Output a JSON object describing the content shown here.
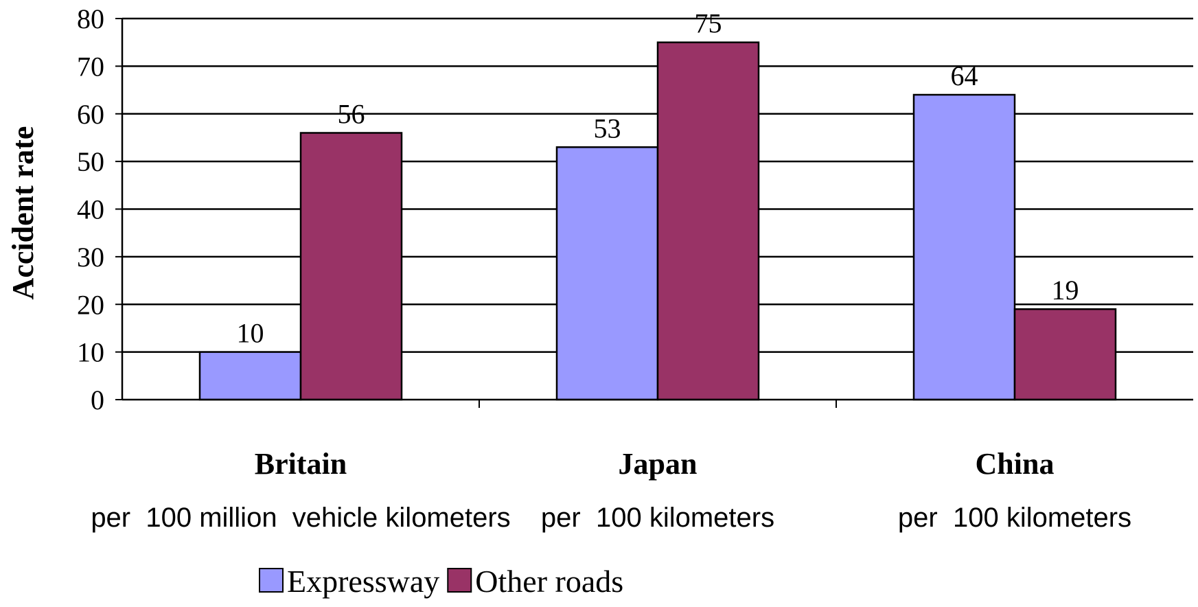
{
  "chart_data": {
    "type": "bar",
    "categories": [
      "Britain",
      "Japan",
      "China"
    ],
    "category_sublabels": [
      "per  100 million  vehicle kilometers",
      "per  100 kilometers",
      "per  100 kilometers"
    ],
    "series": [
      {
        "name": "Expressway",
        "values": [
          10,
          53,
          64
        ],
        "color": "#9999ff"
      },
      {
        "name": "Other roads",
        "values": [
          56,
          75,
          19
        ],
        "color": "#993366"
      }
    ],
    "ylabel": "Accident rate",
    "ylim": [
      0,
      80
    ],
    "yticks": [
      0,
      10,
      20,
      30,
      40,
      50,
      60,
      70,
      80
    ],
    "grid": true,
    "legend_position": "bottom"
  }
}
